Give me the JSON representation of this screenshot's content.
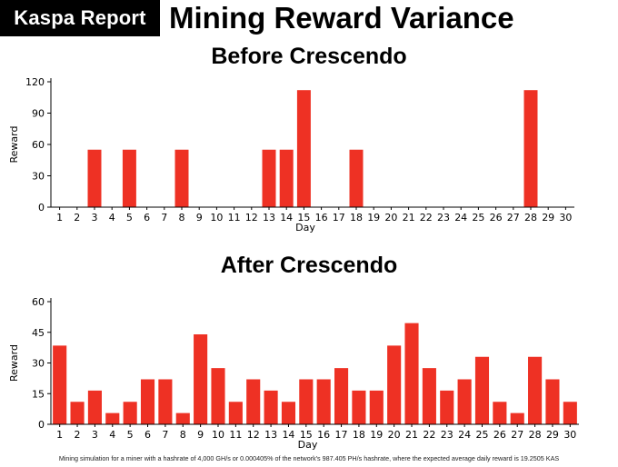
{
  "brand": "Kaspa Report",
  "title": "Mining Reward Variance",
  "footnote": "Mining simulation for a miner with a hashrate of 4,000 GH/s or 0.000405% of the network's 987.405 PH/s hashrate, where the expected average daily reward is 19.2505 KAS",
  "colors": {
    "bar": "#ee3124",
    "axis": "#000000"
  },
  "chart_data": [
    {
      "type": "bar",
      "title": "Before Crescendo",
      "xlabel": "Day",
      "ylabel": "Reward",
      "ylim": [
        0,
        120
      ],
      "yticks": [
        0,
        30,
        60,
        90,
        120
      ],
      "categories": [
        "1",
        "2",
        "3",
        "4",
        "5",
        "6",
        "7",
        "8",
        "9",
        "10",
        "11",
        "12",
        "13",
        "14",
        "15",
        "16",
        "17",
        "18",
        "19",
        "20",
        "21",
        "22",
        "23",
        "24",
        "25",
        "26",
        "27",
        "28",
        "29",
        "30"
      ],
      "values": [
        0,
        0,
        55,
        0,
        55,
        0,
        0,
        55,
        0,
        0,
        0,
        0,
        55,
        55,
        112,
        0,
        0,
        55,
        0,
        0,
        0,
        0,
        0,
        0,
        0,
        0,
        0,
        112,
        0,
        0
      ],
      "grid": false
    },
    {
      "type": "bar",
      "title": "After Crescendo",
      "xlabel": "Day",
      "ylabel": "Reward",
      "ylim": [
        0,
        60
      ],
      "yticks": [
        0,
        15,
        30,
        45,
        60
      ],
      "categories": [
        "1",
        "2",
        "3",
        "4",
        "5",
        "6",
        "7",
        "8",
        "9",
        "10",
        "11",
        "12",
        "13",
        "14",
        "15",
        "16",
        "17",
        "18",
        "19",
        "20",
        "21",
        "22",
        "23",
        "24",
        "25",
        "26",
        "27",
        "28",
        "29",
        "30"
      ],
      "values": [
        38.5,
        11,
        16.5,
        5.5,
        11,
        22,
        22,
        5.5,
        44,
        27.5,
        11,
        22,
        16.5,
        11,
        22,
        22,
        27.5,
        16.5,
        16.5,
        38.5,
        49.5,
        27.5,
        16.5,
        22,
        33,
        11,
        5.5,
        33,
        22,
        11
      ],
      "grid": false
    }
  ]
}
